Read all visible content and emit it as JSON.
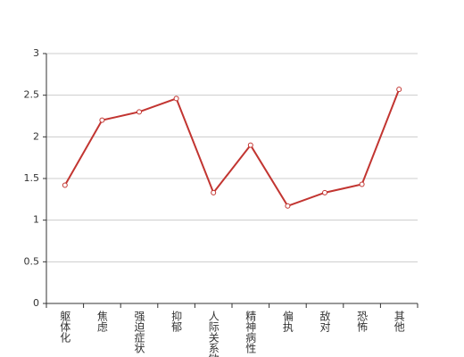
{
  "chart_data": {
    "type": "line",
    "categories": [
      "躯体化",
      "焦虑",
      "强迫症状",
      "抑郁",
      "人际关系敏感",
      "精神病性",
      "偏执",
      "敌对",
      "恐怖",
      "其他"
    ],
    "series": [
      {
        "name": "",
        "color": "#c23531",
        "values": [
          1.42,
          2.2,
          2.3,
          2.46,
          1.33,
          1.9,
          1.17,
          1.33,
          1.43,
          2.57
        ]
      }
    ],
    "ylim": [
      0,
      3
    ],
    "yticks": [
      0,
      0.5,
      1,
      1.5,
      2,
      2.5,
      3
    ],
    "grid": true
  }
}
